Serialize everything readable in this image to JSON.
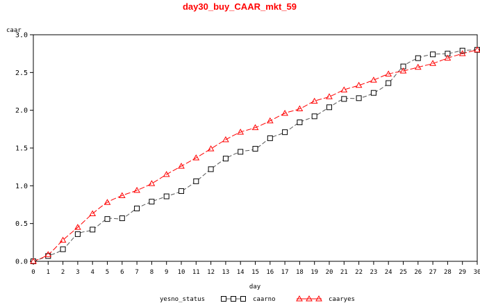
{
  "chart_data": {
    "type": "line",
    "title": "day30_buy_CAAR_mkt_59",
    "xlabel": "day",
    "ylabel": "caar",
    "xlim": [
      0,
      30
    ],
    "ylim": [
      0,
      3.0
    ],
    "x_ticks": [
      0,
      1,
      2,
      3,
      4,
      5,
      6,
      7,
      8,
      9,
      10,
      11,
      12,
      13,
      14,
      15,
      16,
      17,
      18,
      19,
      20,
      21,
      22,
      23,
      24,
      25,
      26,
      27,
      28,
      29,
      30
    ],
    "y_ticks": [
      "0.0",
      "0.5",
      "1.0",
      "1.5",
      "2.0",
      "2.5",
      "3.0"
    ],
    "x": [
      0,
      1,
      2,
      3,
      4,
      5,
      6,
      7,
      8,
      9,
      10,
      11,
      12,
      13,
      14,
      15,
      16,
      17,
      18,
      19,
      20,
      21,
      22,
      23,
      24,
      25,
      26,
      27,
      28,
      29,
      30
    ],
    "series": [
      {
        "name": "caarno",
        "marker": "square",
        "color": "#000000",
        "line_color": "#555555",
        "values": [
          0.0,
          0.07,
          0.16,
          0.36,
          0.42,
          0.56,
          0.57,
          0.7,
          0.79,
          0.86,
          0.93,
          1.06,
          1.22,
          1.36,
          1.45,
          1.49,
          1.63,
          1.71,
          1.84,
          1.92,
          2.04,
          2.15,
          2.16,
          2.23,
          2.36,
          2.58,
          2.69,
          2.74,
          2.75,
          2.79,
          2.8
        ]
      },
      {
        "name": "caaryes",
        "marker": "triangle",
        "color": "#ff0000",
        "line_color": "#ff0000",
        "values": [
          0.0,
          0.09,
          0.28,
          0.45,
          0.63,
          0.78,
          0.87,
          0.94,
          1.03,
          1.15,
          1.26,
          1.37,
          1.49,
          1.61,
          1.71,
          1.77,
          1.86,
          1.96,
          2.02,
          2.12,
          2.18,
          2.27,
          2.33,
          2.4,
          2.48,
          2.52,
          2.57,
          2.62,
          2.69,
          2.75,
          2.8
        ]
      }
    ],
    "legend": {
      "title": "yesno_status",
      "placement": "bottom"
    },
    "grid": false,
    "title_color": "#ff0000"
  }
}
